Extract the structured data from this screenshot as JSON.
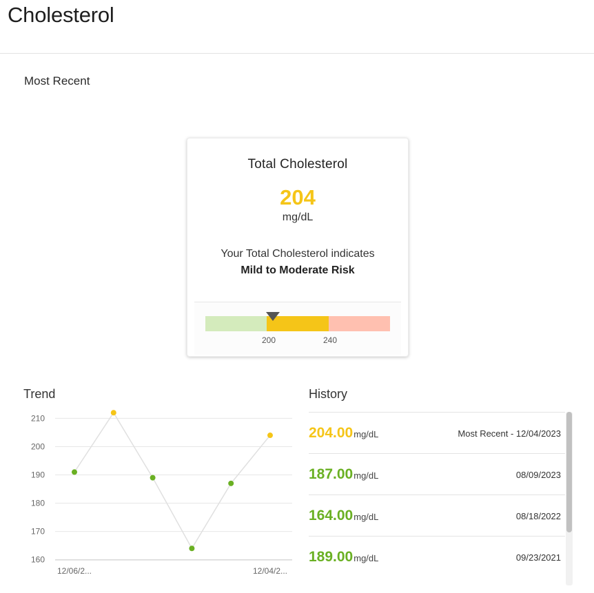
{
  "page": {
    "title": "Cholesterol"
  },
  "most_recent": {
    "label": "Most Recent",
    "card": {
      "title": "Total Cholesterol",
      "value": "204",
      "unit": "mg/dL",
      "description": "Your Total Cholesterol indicates",
      "risk": "Mild to Moderate Risk",
      "value_color": "#f5c518",
      "gauge": {
        "min": 150,
        "max": 290,
        "current": 204,
        "thresholds": [
          "200",
          "240"
        ],
        "colors": {
          "low": "#d4ebbc",
          "mid": "#f5c518",
          "high": "#ffc0b0",
          "marker": "#555555"
        }
      }
    }
  },
  "trend": {
    "label": "Trend",
    "colors": {
      "normal": "#6ab023",
      "elevated": "#f5c518",
      "line": "#e0e0e0"
    }
  },
  "chart_data": {
    "type": "line",
    "x": [
      "12/06/2...",
      "",
      "",
      "",
      "",
      "12/04/2..."
    ],
    "series": [
      {
        "values": [
          191,
          212,
          189,
          164,
          187,
          204
        ]
      }
    ],
    "point_levels": [
      "normal",
      "elevated",
      "normal",
      "normal",
      "normal",
      "elevated"
    ],
    "yticks": [
      160,
      170,
      180,
      190,
      200,
      210
    ],
    "ylim": [
      157,
      214
    ],
    "grid": true,
    "title": "",
    "xlabel": "",
    "ylabel": ""
  },
  "history": {
    "label": "History",
    "items": [
      {
        "value": "204.00",
        "unit": "mg/dL",
        "date": "Most Recent - 12/04/2023",
        "color": "#f5c518"
      },
      {
        "value": "187.00",
        "unit": "mg/dL",
        "date": "08/09/2023",
        "color": "#6ab023"
      },
      {
        "value": "164.00",
        "unit": "mg/dL",
        "date": "08/18/2022",
        "color": "#6ab023"
      },
      {
        "value": "189.00",
        "unit": "mg/dL",
        "date": "09/23/2021",
        "color": "#6ab023"
      }
    ]
  }
}
